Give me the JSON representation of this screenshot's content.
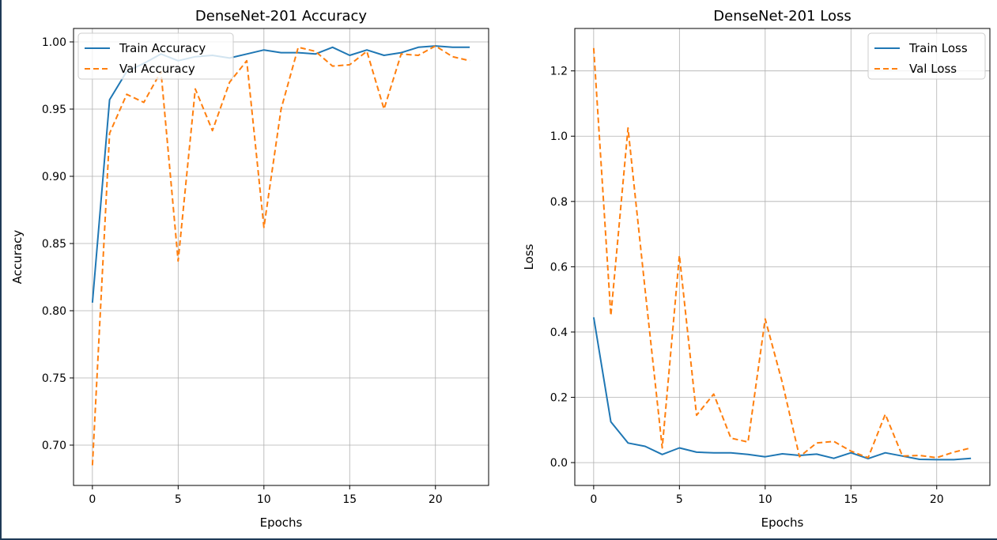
{
  "chart_data": [
    {
      "type": "line",
      "title": "DenseNet-201 Accuracy",
      "xlabel": "Epochs",
      "ylabel": "Accuracy",
      "xlim": [
        -1.1,
        23.1
      ],
      "ylim": [
        0.67,
        1.01
      ],
      "xticks": [
        0,
        5,
        10,
        15,
        20
      ],
      "yticks": [
        0.7,
        0.75,
        0.8,
        0.85,
        0.9,
        0.95,
        1.0
      ],
      "ytick_labels": [
        "0.70",
        "0.75",
        "0.80",
        "0.85",
        "0.90",
        "0.95",
        "1.00"
      ],
      "grid": true,
      "legend_position": "top-left",
      "x": [
        0,
        1,
        2,
        3,
        4,
        5,
        6,
        7,
        8,
        9,
        10,
        11,
        12,
        13,
        14,
        15,
        16,
        17,
        18,
        19,
        20,
        21,
        22
      ],
      "series": [
        {
          "name": "Train Accuracy",
          "style": "solid",
          "color": "#1f77b4",
          "values": [
            0.806,
            0.957,
            0.978,
            0.984,
            0.991,
            0.986,
            0.989,
            0.99,
            0.988,
            0.991,
            0.994,
            0.992,
            0.992,
            0.991,
            0.996,
            0.99,
            0.994,
            0.99,
            0.992,
            0.996,
            0.997,
            0.996,
            0.996
          ]
        },
        {
          "name": "Val Accuracy",
          "style": "dashed",
          "color": "#ff7f0e",
          "values": [
            0.685,
            0.932,
            0.961,
            0.955,
            0.978,
            0.837,
            0.965,
            0.934,
            0.97,
            0.986,
            0.862,
            0.95,
            0.996,
            0.993,
            0.982,
            0.983,
            0.993,
            0.95,
            0.991,
            0.99,
            0.997,
            0.989,
            0.986
          ]
        }
      ]
    },
    {
      "type": "line",
      "title": "DenseNet-201 Loss",
      "xlabel": "Epochs",
      "ylabel": "Loss",
      "xlim": [
        -1.1,
        23.1
      ],
      "ylim": [
        -0.07,
        1.33
      ],
      "xticks": [
        0,
        5,
        10,
        15,
        20
      ],
      "yticks": [
        0.0,
        0.2,
        0.4,
        0.6,
        0.8,
        1.0,
        1.2
      ],
      "ytick_labels": [
        "0.0",
        "0.2",
        "0.4",
        "0.6",
        "0.8",
        "1.0",
        "1.2"
      ],
      "grid": true,
      "legend_position": "top-right",
      "x": [
        0,
        1,
        2,
        3,
        4,
        5,
        6,
        7,
        8,
        9,
        10,
        11,
        12,
        13,
        14,
        15,
        16,
        17,
        18,
        19,
        20,
        21,
        22
      ],
      "series": [
        {
          "name": "Train Loss",
          "style": "solid",
          "color": "#1f77b4",
          "values": [
            0.445,
            0.125,
            0.06,
            0.05,
            0.025,
            0.045,
            0.032,
            0.03,
            0.03,
            0.025,
            0.018,
            0.027,
            0.022,
            0.026,
            0.013,
            0.03,
            0.012,
            0.03,
            0.02,
            0.01,
            0.009,
            0.009,
            0.013
          ]
        },
        {
          "name": "Val Loss",
          "style": "dashed",
          "color": "#ff7f0e",
          "values": [
            1.27,
            0.45,
            1.025,
            0.53,
            0.045,
            0.635,
            0.145,
            0.21,
            0.075,
            0.063,
            0.44,
            0.245,
            0.018,
            0.06,
            0.065,
            0.035,
            0.015,
            0.148,
            0.02,
            0.022,
            0.015,
            0.032,
            0.045
          ]
        }
      ]
    }
  ]
}
